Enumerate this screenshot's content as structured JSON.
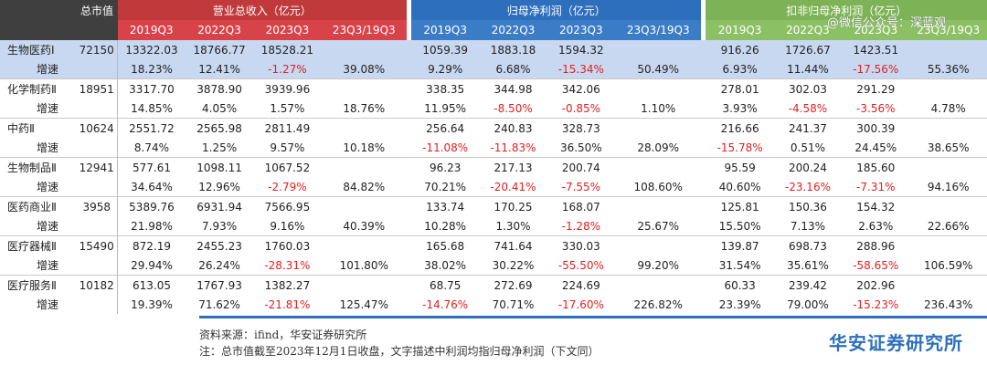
{
  "header": {
    "market_cap_label": "总市值",
    "group_revenue": "营业总收入（亿元）",
    "group_netprofit": "归母净利润（亿元）",
    "group_deducted": "扣非归母净利润（亿元）",
    "periods": [
      "2019Q3",
      "2022Q3",
      "2023Q3",
      "23Q3/19Q3"
    ]
  },
  "watermark": "@微信公众号：深蓝观",
  "rows": [
    {
      "name": "生物医药Ⅰ",
      "cap": "72150",
      "v": [
        "13322.03",
        "18766.77",
        "18528.21",
        "",
        "1059.39",
        "1883.18",
        "1594.32",
        "",
        "916.26",
        "1726.67",
        "1423.51",
        ""
      ],
      "g": [
        "18.23%",
        "12.41%",
        "-1.27%",
        "39.08%",
        "9.29%",
        "6.68%",
        "-15.34%",
        "50.49%",
        "6.93%",
        "11.44%",
        "-17.56%",
        "55.36%"
      ]
    },
    {
      "name": "化学制药Ⅱ",
      "cap": "18951",
      "v": [
        "3317.70",
        "3878.90",
        "3939.96",
        "",
        "338.35",
        "344.98",
        "342.06",
        "",
        "278.01",
        "302.03",
        "291.29",
        ""
      ],
      "g": [
        "14.85%",
        "4.05%",
        "1.57%",
        "18.76%",
        "11.95%",
        "-8.50%",
        "-0.85%",
        "1.10%",
        "3.93%",
        "-4.58%",
        "-3.56%",
        "4.78%"
      ]
    },
    {
      "name": "中药Ⅱ",
      "cap": "10624",
      "v": [
        "2551.72",
        "2565.98",
        "2811.49",
        "",
        "256.64",
        "240.83",
        "328.73",
        "",
        "216.66",
        "241.37",
        "300.39",
        ""
      ],
      "g": [
        "8.74%",
        "1.25%",
        "9.57%",
        "10.18%",
        "-11.08%",
        "-11.83%",
        "36.50%",
        "28.09%",
        "-15.78%",
        "0.51%",
        "24.45%",
        "38.65%"
      ]
    },
    {
      "name": "生物制品Ⅱ",
      "cap": "12941",
      "v": [
        "577.61",
        "1098.11",
        "1067.52",
        "",
        "96.23",
        "217.13",
        "200.74",
        "",
        "95.59",
        "200.24",
        "185.60",
        ""
      ],
      "g": [
        "34.64%",
        "12.96%",
        "-2.79%",
        "84.82%",
        "70.21%",
        "-20.41%",
        "-7.55%",
        "108.60%",
        "40.60%",
        "-23.16%",
        "-7.31%",
        "94.16%"
      ]
    },
    {
      "name": "医药商业Ⅱ",
      "cap": "3958",
      "v": [
        "5389.76",
        "6931.94",
        "7566.95",
        "",
        "133.74",
        "170.25",
        "168.07",
        "",
        "125.81",
        "150.36",
        "154.32",
        ""
      ],
      "g": [
        "21.98%",
        "7.93%",
        "9.16%",
        "40.39%",
        "10.28%",
        "1.30%",
        "-1.28%",
        "25.67%",
        "15.50%",
        "7.13%",
        "2.63%",
        "22.66%"
      ]
    },
    {
      "name": "医疗器械Ⅱ",
      "cap": "15490",
      "v": [
        "872.19",
        "2455.23",
        "1760.03",
        "",
        "165.68",
        "741.64",
        "330.03",
        "",
        "139.87",
        "698.73",
        "288.96",
        ""
      ],
      "g": [
        "29.94%",
        "26.24%",
        "-28.31%",
        "101.80%",
        "38.02%",
        "30.22%",
        "-55.50%",
        "99.20%",
        "31.54%",
        "35.61%",
        "-58.65%",
        "106.59%"
      ]
    },
    {
      "name": "医疗服务Ⅱ",
      "cap": "10182",
      "v": [
        "613.05",
        "1767.93",
        "1382.27",
        "",
        "68.75",
        "272.69",
        "224.69",
        "",
        "60.33",
        "239.42",
        "202.96",
        ""
      ],
      "g": [
        "19.39%",
        "71.62%",
        "-21.81%",
        "125.47%",
        "-14.76%",
        "70.71%",
        "-17.60%",
        "226.82%",
        "23.39%",
        "79.00%",
        "-15.23%",
        "236.43%"
      ]
    }
  ],
  "growth_label": "增速",
  "footer": {
    "source": "资料来源：ifind，华安证券研究所",
    "note": "注：总市值截至2023年12月1日收盘，文字描述中利润均指归母净利润（下文同）",
    "brand": "华安证券研究所"
  }
}
